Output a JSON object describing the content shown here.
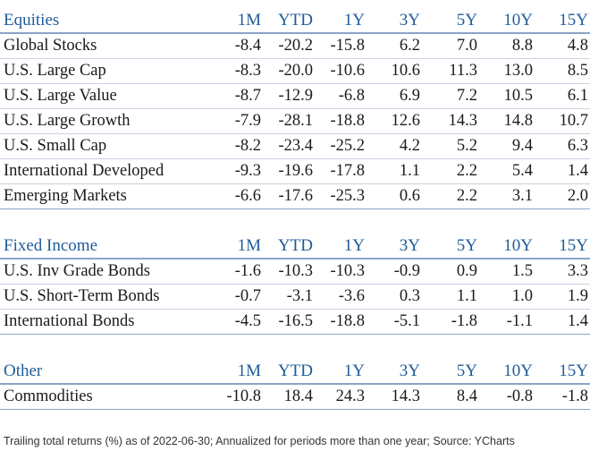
{
  "columns": [
    "1M",
    "YTD",
    "1Y",
    "3Y",
    "5Y",
    "10Y",
    "15Y"
  ],
  "sections": [
    {
      "title": "Equities",
      "rows": [
        {
          "name": "Global Stocks",
          "values": [
            "-8.4",
            "-20.2",
            "-15.8",
            "6.2",
            "7.0",
            "8.8",
            "4.8"
          ]
        },
        {
          "name": "U.S. Large Cap",
          "values": [
            "-8.3",
            "-20.0",
            "-10.6",
            "10.6",
            "11.3",
            "13.0",
            "8.5"
          ]
        },
        {
          "name": "U.S. Large Value",
          "values": [
            "-8.7",
            "-12.9",
            "-6.8",
            "6.9",
            "7.2",
            "10.5",
            "6.1"
          ]
        },
        {
          "name": "U.S. Large Growth",
          "values": [
            "-7.9",
            "-28.1",
            "-18.8",
            "12.6",
            "14.3",
            "14.8",
            "10.7"
          ]
        },
        {
          "name": "U.S. Small Cap",
          "values": [
            "-8.2",
            "-23.4",
            "-25.2",
            "4.2",
            "5.2",
            "9.4",
            "6.3"
          ]
        },
        {
          "name": "International Developed",
          "values": [
            "-9.3",
            "-19.6",
            "-17.8",
            "1.1",
            "2.2",
            "5.4",
            "1.4"
          ]
        },
        {
          "name": "Emerging Markets",
          "values": [
            "-6.6",
            "-17.6",
            "-25.3",
            "0.6",
            "2.2",
            "3.1",
            "2.0"
          ]
        }
      ]
    },
    {
      "title": "Fixed Income",
      "rows": [
        {
          "name": "U.S. Inv Grade Bonds",
          "values": [
            "-1.6",
            "-10.3",
            "-10.3",
            "-0.9",
            "0.9",
            "1.5",
            "3.3"
          ]
        },
        {
          "name": "U.S. Short-Term Bonds",
          "values": [
            "-0.7",
            "-3.1",
            "-3.6",
            "0.3",
            "1.1",
            "1.0",
            "1.9"
          ]
        },
        {
          "name": "International Bonds",
          "values": [
            "-4.5",
            "-16.5",
            "-18.8",
            "-5.1",
            "-1.8",
            "-1.1",
            "1.4"
          ]
        }
      ]
    },
    {
      "title": "Other",
      "rows": [
        {
          "name": "Commodities",
          "values": [
            "-10.8",
            "18.4",
            "24.3",
            "14.3",
            "8.4",
            "-0.8",
            "-1.8"
          ]
        }
      ]
    }
  ],
  "footnote": "Trailing total returns (%) as of 2022-06-30; Annualized for periods more than one year; Source: YCharts",
  "colors": {
    "header_text": "#1f5c99",
    "rule": "#8aa4c8",
    "row_rule": "#c9d3e2"
  }
}
